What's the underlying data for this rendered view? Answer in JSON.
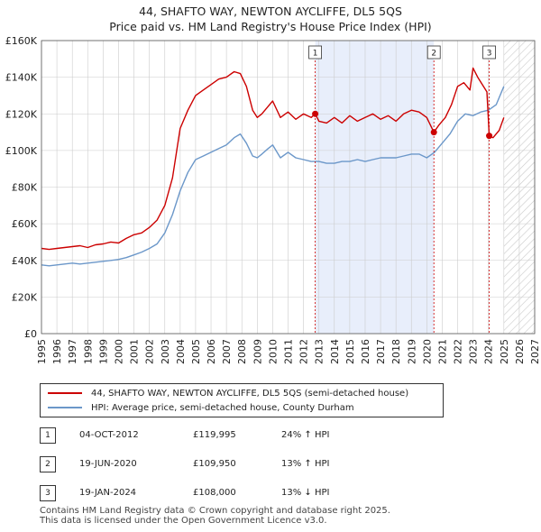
{
  "title": "44, SHAFTO WAY, NEWTON AYCLIFFE, DL5 5QS",
  "subtitle": "Price paid vs. HM Land Registry's House Price Index (HPI)",
  "colors": {
    "property": "#cc0000",
    "hpi": "#6b97c9",
    "shade": "#e8eefb",
    "grid": "#cccccc",
    "marker_line": "#cc0000"
  },
  "legend": {
    "property_label": "44, SHAFTO WAY, NEWTON AYCLIFFE, DL5 5QS (semi-detached house)",
    "hpi_label": "HPI: Average price, semi-detached house, County Durham"
  },
  "sales": [
    {
      "num": "1",
      "date": "04-OCT-2012",
      "price": "£119,995",
      "delta": "24% ↑ HPI"
    },
    {
      "num": "2",
      "date": "19-JUN-2020",
      "price": "£109,950",
      "delta": "13% ↑ HPI"
    },
    {
      "num": "3",
      "date": "19-JAN-2024",
      "price": "£108,000",
      "delta": "13% ↓ HPI"
    }
  ],
  "footer": {
    "line1": "Contains HM Land Registry data © Crown copyright and database right 2025.",
    "line2": "This data is licensed under the Open Government Licence v3.0."
  },
  "chart_data": {
    "type": "line",
    "title": "44, SHAFTO WAY, NEWTON AYCLIFFE, DL5 5QS",
    "subtitle": "Price paid vs. HM Land Registry's House Price Index (HPI)",
    "xlabel": "",
    "ylabel": "",
    "xlim": [
      1995,
      2027
    ],
    "ylim": [
      0,
      160000
    ],
    "x_ticks": [
      1995,
      1996,
      1997,
      1998,
      1999,
      2000,
      2001,
      2002,
      2003,
      2004,
      2005,
      2006,
      2007,
      2008,
      2009,
      2010,
      2011,
      2012,
      2013,
      2014,
      2015,
      2016,
      2017,
      2018,
      2019,
      2020,
      2021,
      2022,
      2023,
      2024,
      2025,
      2026,
      2027
    ],
    "y_ticks": [
      {
        "value": 0,
        "label": "£0"
      },
      {
        "value": 20000,
        "label": "£20K"
      },
      {
        "value": 40000,
        "label": "£40K"
      },
      {
        "value": 60000,
        "label": "£60K"
      },
      {
        "value": 80000,
        "label": "£80K"
      },
      {
        "value": 100000,
        "label": "£100K"
      },
      {
        "value": 120000,
        "label": "£120K"
      },
      {
        "value": 140000,
        "label": "£140K"
      },
      {
        "value": 160000,
        "label": "£160K"
      }
    ],
    "grid": true,
    "shaded_range": [
      2012.76,
      2020.46
    ],
    "forecast_start": 2025.0,
    "series": [
      {
        "name": "44, SHAFTO WAY, NEWTON AYCLIFFE, DL5 5QS (semi-detached house)",
        "x": [
          1995.0,
          1995.5,
          1996.0,
          1996.5,
          1997.0,
          1997.5,
          1998.0,
          1998.5,
          1999.0,
          1999.5,
          2000.0,
          2000.5,
          2001.0,
          2001.5,
          2002.0,
          2002.5,
          2003.0,
          2003.5,
          2004.0,
          2004.5,
          2005.0,
          2005.5,
          2006.0,
          2006.5,
          2007.0,
          2007.5,
          2007.9,
          2008.3,
          2008.7,
          2009.0,
          2009.3,
          2009.7,
          2010.0,
          2010.5,
          2011.0,
          2011.5,
          2012.0,
          2012.5,
          2012.76,
          2013.0,
          2013.5,
          2014.0,
          2014.5,
          2015.0,
          2015.5,
          2016.0,
          2016.5,
          2017.0,
          2017.5,
          2018.0,
          2018.5,
          2019.0,
          2019.5,
          2020.0,
          2020.46,
          2020.8,
          2021.2,
          2021.6,
          2022.0,
          2022.4,
          2022.8,
          2023.0,
          2023.3,
          2023.6,
          2023.9,
          2024.05,
          2024.3,
          2024.7,
          2025.0
        ],
        "y": [
          46500,
          46000,
          46500,
          47000,
          47500,
          48000,
          47000,
          48500,
          49000,
          50000,
          49500,
          52000,
          54000,
          55000,
          58000,
          62000,
          70000,
          85000,
          112000,
          122000,
          130000,
          133000,
          136000,
          139000,
          140000,
          143000,
          142000,
          135000,
          122000,
          118000,
          120000,
          124000,
          127000,
          118000,
          121000,
          117000,
          120000,
          118000,
          119995,
          116000,
          115000,
          118000,
          115000,
          119000,
          116000,
          118000,
          120000,
          117000,
          119000,
          116000,
          120000,
          122000,
          121000,
          118000,
          109950,
          114000,
          118000,
          125000,
          135000,
          137000,
          133000,
          145000,
          140000,
          136000,
          132000,
          108000,
          107000,
          111000,
          118000
        ]
      },
      {
        "name": "HPI: Average price, semi-detached house, County Durham",
        "x": [
          1995.0,
          1995.5,
          1996.0,
          1996.5,
          1997.0,
          1997.5,
          1998.0,
          1998.5,
          1999.0,
          1999.5,
          2000.0,
          2000.5,
          2001.0,
          2001.5,
          2002.0,
          2002.5,
          2003.0,
          2003.5,
          2004.0,
          2004.5,
          2005.0,
          2005.5,
          2006.0,
          2006.5,
          2007.0,
          2007.5,
          2007.9,
          2008.3,
          2008.7,
          2009.0,
          2009.3,
          2009.7,
          2010.0,
          2010.5,
          2011.0,
          2011.5,
          2012.0,
          2012.5,
          2013.0,
          2013.5,
          2014.0,
          2014.5,
          2015.0,
          2015.5,
          2016.0,
          2016.5,
          2017.0,
          2017.5,
          2018.0,
          2018.5,
          2019.0,
          2019.5,
          2020.0,
          2020.5,
          2021.0,
          2021.5,
          2022.0,
          2022.5,
          2023.0,
          2023.5,
          2024.0,
          2024.5,
          2025.0
        ],
        "y": [
          37500,
          37000,
          37500,
          38000,
          38500,
          38000,
          38500,
          39000,
          39500,
          40000,
          40500,
          41500,
          43000,
          44500,
          46500,
          49000,
          55000,
          65000,
          78000,
          88000,
          95000,
          97000,
          99000,
          101000,
          103000,
          107000,
          109000,
          104000,
          97000,
          96000,
          98000,
          101000,
          103000,
          96000,
          99000,
          96000,
          95000,
          94000,
          94000,
          93000,
          93000,
          94000,
          94000,
          95000,
          94000,
          95000,
          96000,
          96000,
          96000,
          97000,
          98000,
          98000,
          96000,
          99000,
          104000,
          109000,
          116000,
          120000,
          119000,
          121000,
          122000,
          125000,
          135000
        ]
      }
    ],
    "sale_points": [
      {
        "label": "1",
        "x": 2012.76,
        "y": 119995
      },
      {
        "label": "2",
        "x": 2020.46,
        "y": 109950
      },
      {
        "label": "3",
        "x": 2024.05,
        "y": 108000
      }
    ]
  }
}
